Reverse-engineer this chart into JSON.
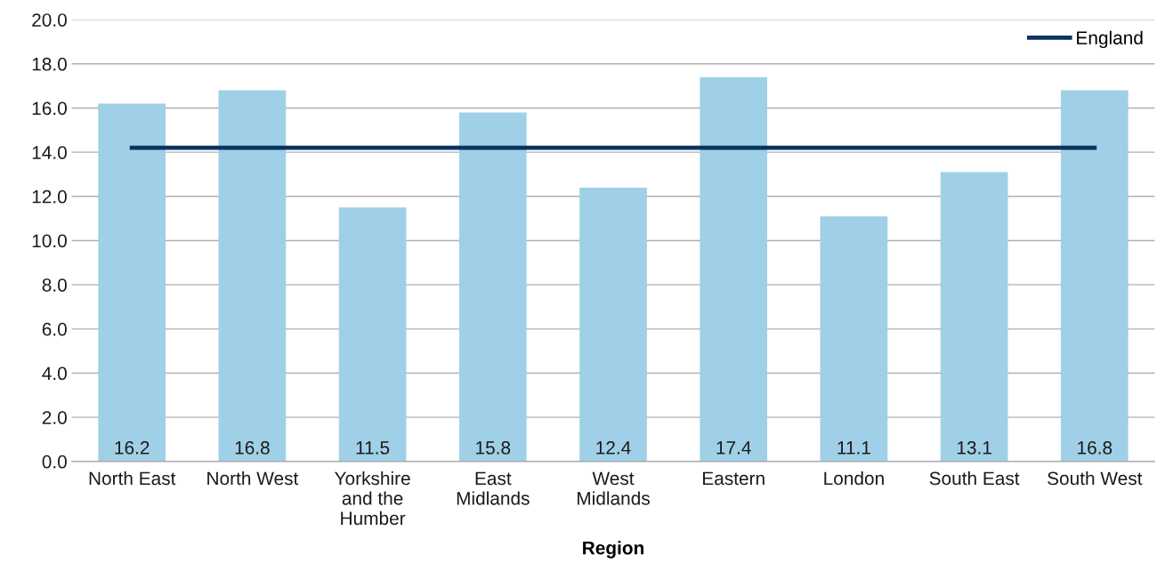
{
  "chart_data": {
    "type": "bar",
    "xlabel": "Region",
    "categories": [
      "North East",
      "North West",
      "Yorkshire\nand the\nHumber",
      "East\nMidlands",
      "West\nMidlands",
      "Eastern",
      "London",
      "South East",
      "South West"
    ],
    "series": [
      {
        "color": "#a0d0e7",
        "values": [
          16.2,
          16.8,
          11.5,
          15.8,
          12.4,
          17.4,
          11.1,
          13.1,
          16.8
        ],
        "value_labels": [
          "16.2",
          "16.8",
          "11.5",
          "15.8",
          "12.4",
          "17.4",
          "11.1",
          "13.1",
          "16.8"
        ]
      },
      {
        "type": "line",
        "name": "England",
        "color": "#0b3560",
        "values": [
          14.2,
          14.2,
          14.2,
          14.2,
          14.2,
          14.2,
          14.2,
          14.2,
          14.2
        ]
      }
    ],
    "ylim": [
      0,
      20
    ],
    "yticks": [
      {
        "value": 0,
        "label": "0.0"
      },
      {
        "value": 2,
        "label": "2.0"
      },
      {
        "value": 4,
        "label": "4.0"
      },
      {
        "value": 6,
        "label": "6.0"
      },
      {
        "value": 8,
        "label": "8.0"
      },
      {
        "value": 10,
        "label": "10.0"
      },
      {
        "value": 12,
        "label": "12.0"
      },
      {
        "value": 14,
        "label": "14.0"
      },
      {
        "value": 16,
        "label": "16.0"
      },
      {
        "value": 18,
        "label": "18.0"
      },
      {
        "value": 20,
        "label": "20.0"
      }
    ],
    "grid": "y",
    "legend": "top right",
    "marker": "none",
    "line_style": "solid"
  }
}
